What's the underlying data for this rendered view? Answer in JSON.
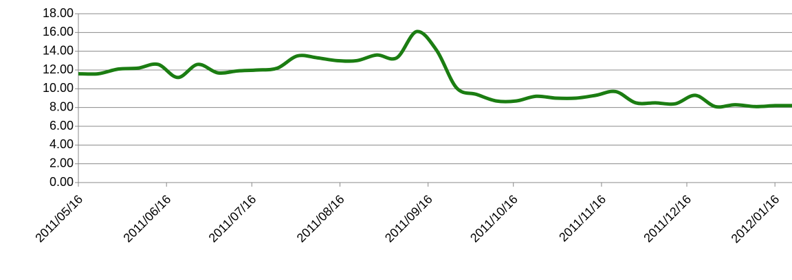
{
  "chart_data": {
    "type": "line",
    "x": [
      "2011/05/16",
      "2011/05/23",
      "2011/05/30",
      "2011/06/06",
      "2011/06/13",
      "2011/06/20",
      "2011/06/27",
      "2011/07/04",
      "2011/07/11",
      "2011/07/18",
      "2011/07/25",
      "2011/08/01",
      "2011/08/08",
      "2011/08/15",
      "2011/08/22",
      "2011/08/29",
      "2011/09/05",
      "2011/09/12",
      "2011/09/19",
      "2011/09/26",
      "2011/10/03",
      "2011/10/10",
      "2011/10/17",
      "2011/10/24",
      "2011/10/31",
      "2011/11/07",
      "2011/11/14",
      "2011/11/21",
      "2011/11/28",
      "2011/12/05",
      "2011/12/12",
      "2011/12/19",
      "2011/12/26",
      "2012/01/02",
      "2012/01/09",
      "2012/01/16",
      "2012/01/22"
    ],
    "series": [
      {
        "color": "#1b7d12",
        "values": [
          11.6,
          11.6,
          12.1,
          12.2,
          12.6,
          11.2,
          12.6,
          11.7,
          11.9,
          12.0,
          12.2,
          13.5,
          13.3,
          13.0,
          13.0,
          13.6,
          13.3,
          16.1,
          14.1,
          10.1,
          9.4,
          8.7,
          8.7,
          9.2,
          9.0,
          9.0,
          9.3,
          9.7,
          8.5,
          8.5,
          8.4,
          9.3,
          8.1,
          8.3,
          8.1,
          8.2,
          8.2
        ]
      }
    ],
    "xlim": [
      "2011/05/16",
      "2012/01/22"
    ],
    "xticks": [
      "2011/05/16",
      "2011/06/16",
      "2011/07/16",
      "2011/08/16",
      "2011/09/16",
      "2011/10/16",
      "2011/11/16",
      "2011/12/16",
      "2012/01/16"
    ],
    "ylim": [
      0,
      18
    ],
    "yticks": [
      {
        "value": 0,
        "label": "0.00"
      },
      {
        "value": 2,
        "label": "2.00"
      },
      {
        "value": 4,
        "label": "4.00"
      },
      {
        "value": 6,
        "label": "6.00"
      },
      {
        "value": 8,
        "label": "8.00"
      },
      {
        "value": 10,
        "label": "10.00"
      },
      {
        "value": 12,
        "label": "12.00"
      },
      {
        "value": 14,
        "label": "14.00"
      },
      {
        "value": 16,
        "label": "16.00"
      },
      {
        "value": 18,
        "label": "18.00"
      }
    ],
    "grid": true
  }
}
